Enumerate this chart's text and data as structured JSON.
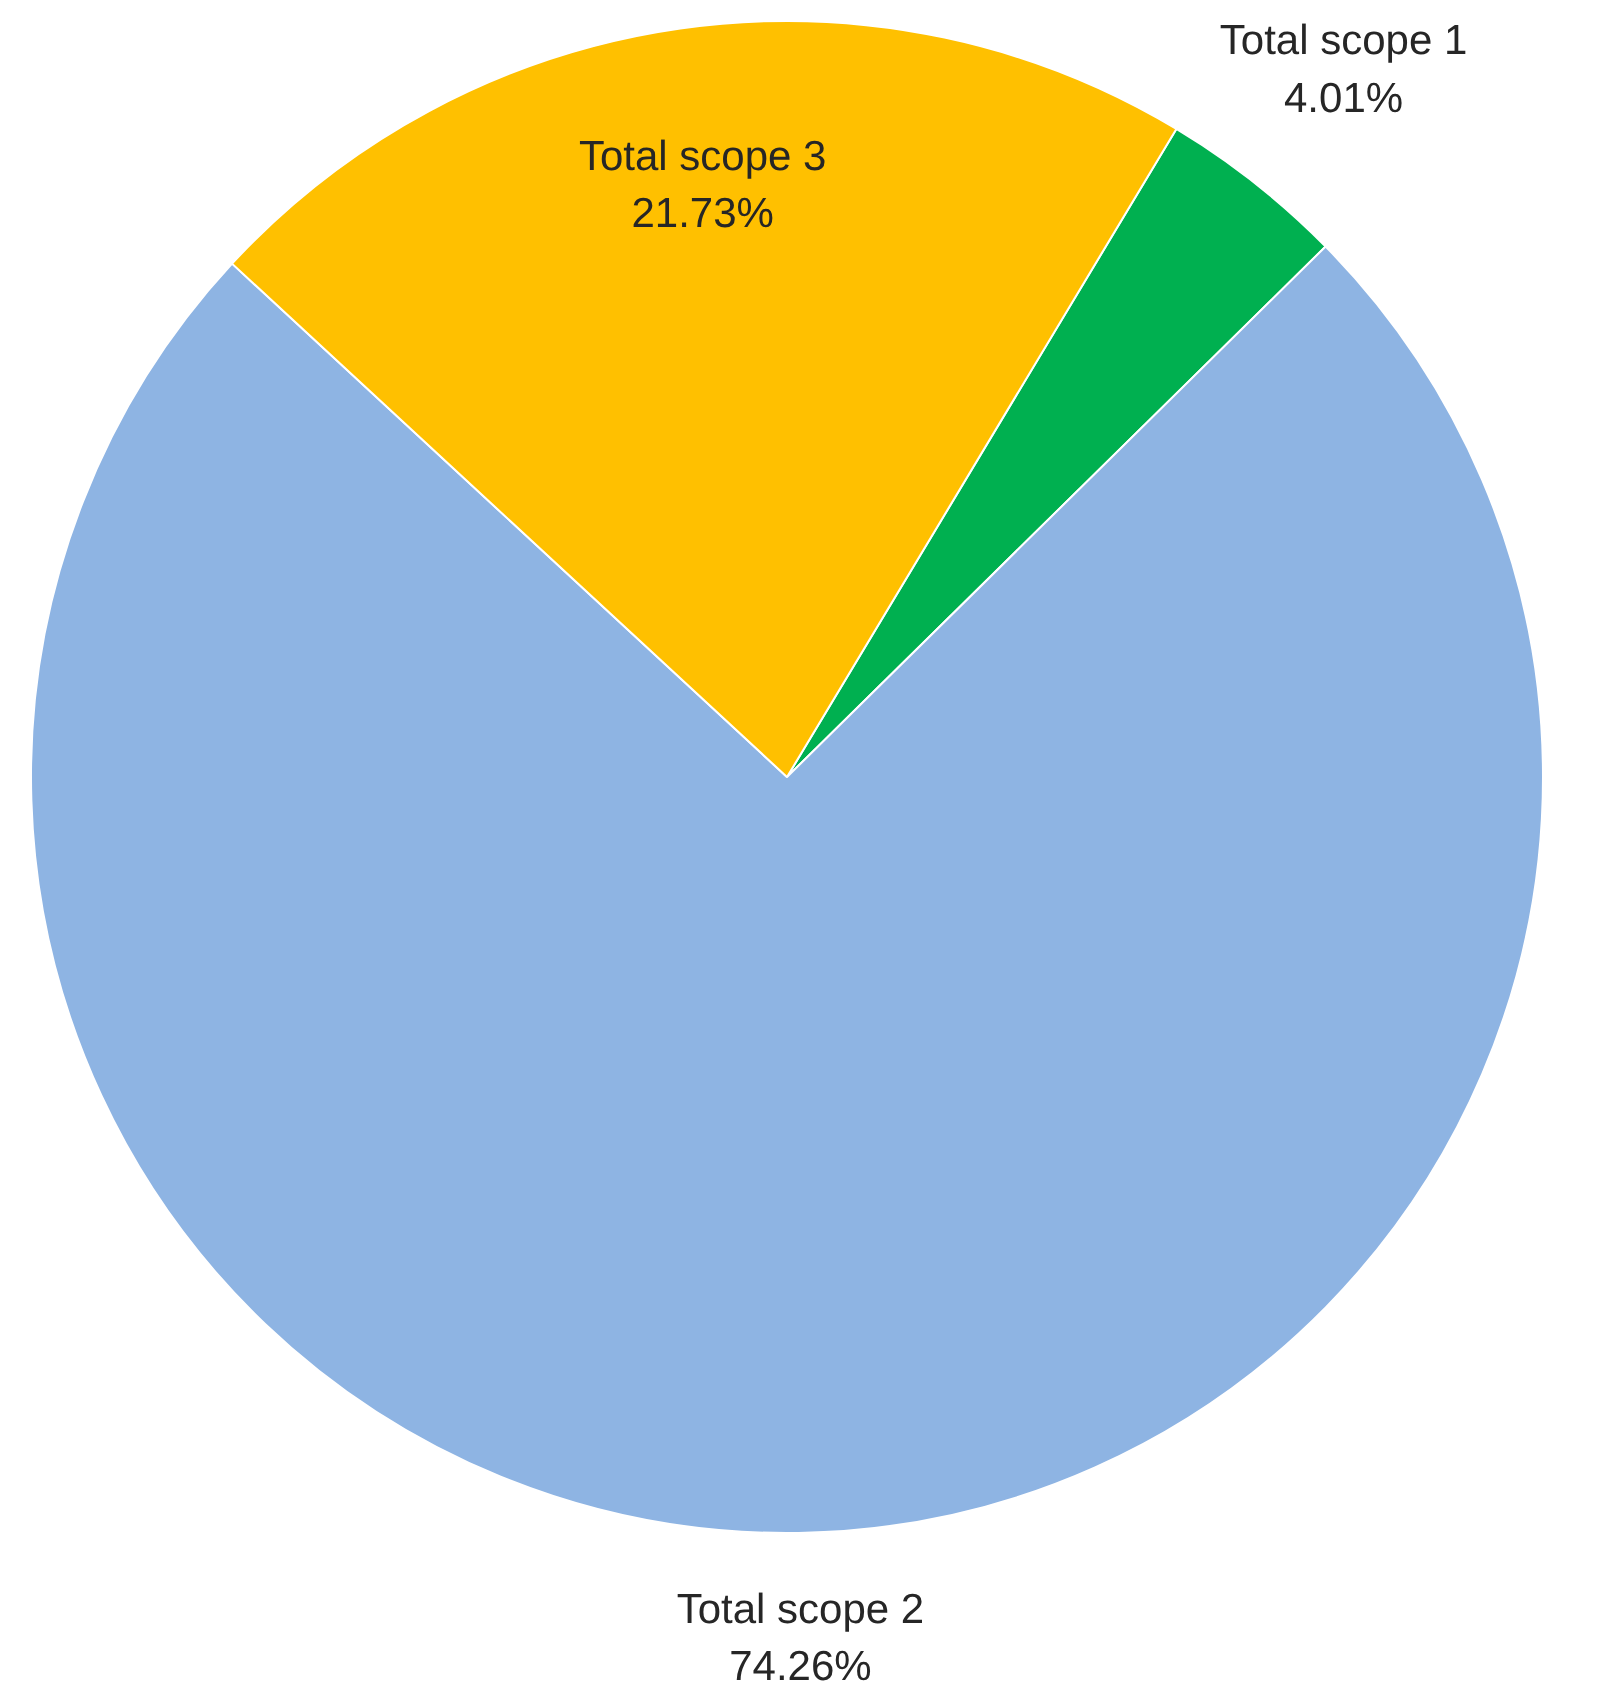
{
  "chart_data": {
    "type": "pie",
    "categories": [
      "Total scope 1",
      "Total scope 2",
      "Total scope 3"
    ],
    "values": [
      4.01,
      74.26,
      21.73
    ],
    "value_labels": [
      "4.01%",
      "74.26%",
      "21.73%"
    ],
    "colors": [
      "#00b050",
      "#8eb4e3",
      "#ffc000"
    ]
  }
}
